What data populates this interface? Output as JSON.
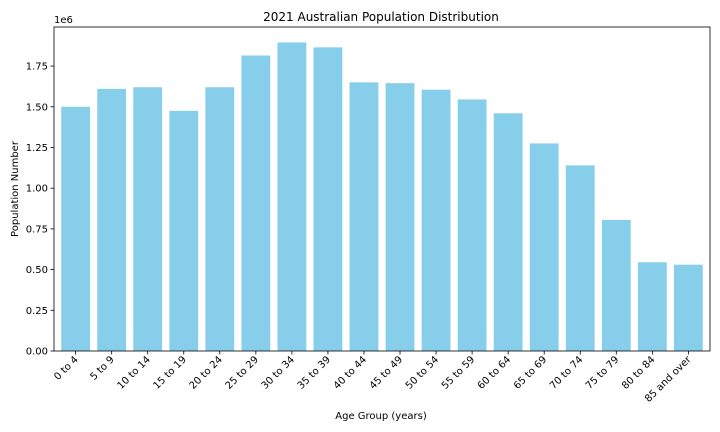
{
  "chart_data": {
    "type": "bar",
    "title": "2021 Australian Population Distribution",
    "xlabel": "Age Group (years)",
    "ylabel": "Population Number",
    "y_offset_label": "1e6",
    "categories": [
      "0 to 4",
      "5 to 9",
      "10 to 14",
      "15 to 19",
      "20 to 24",
      "25 to 29",
      "30 to 34",
      "35 to 39",
      "40 to 44",
      "45 to 49",
      "50 to 54",
      "55 to 59",
      "60 to 64",
      "65 to 69",
      "70 to 74",
      "75 to 79",
      "80 to 84",
      "85 and over"
    ],
    "values": [
      1500000,
      1610000,
      1620000,
      1475000,
      1620000,
      1815000,
      1895000,
      1865000,
      1650000,
      1645000,
      1605000,
      1545000,
      1460000,
      1275000,
      1140000,
      805000,
      545000,
      530000
    ],
    "ylim": [
      0,
      1990000
    ],
    "yticks": [
      0,
      250000,
      500000,
      750000,
      1000000,
      1250000,
      1500000,
      1750000
    ],
    "ytick_labels": [
      "0.00",
      "0.25",
      "0.50",
      "0.75",
      "1.00",
      "1.25",
      "1.50",
      "1.75"
    ],
    "bar_color": "#87ceeb",
    "grid": false,
    "legend": "none"
  }
}
